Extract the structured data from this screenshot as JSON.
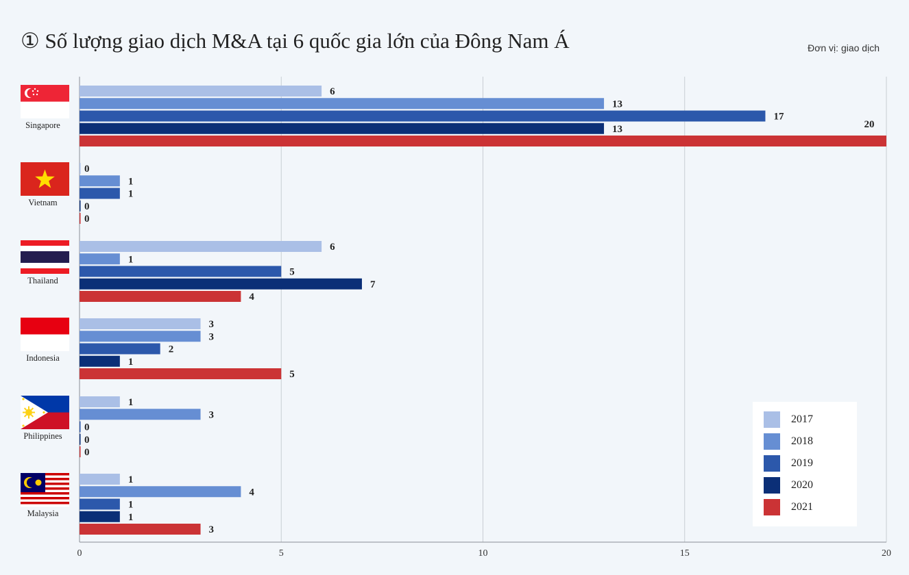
{
  "header": {
    "title": "① Số lượng giao dịch M&A tại 6 quốc gia lớn của Đông Nam Á",
    "unit": "Đơn vị: giao dịch"
  },
  "colors": {
    "2017": "#aabfe6",
    "2018": "#668ed3",
    "2019": "#2c58ab",
    "2020": "#0b2f77",
    "2021": "#cb3335",
    "grid": "#c8cdd3",
    "axis": "#8a8f96"
  },
  "chart_data": {
    "type": "bar",
    "orientation": "horizontal",
    "title": "① Số lượng giao dịch M&A tại 6 quốc gia lớn của Đông Nam Á",
    "xlim": [
      0,
      20
    ],
    "x_ticks": [
      0,
      5,
      10,
      15,
      20
    ],
    "grid": true,
    "legend_position": "bottom-right",
    "categories": [
      "Singapore",
      "Vietnam",
      "Thailand",
      "Indonesia",
      "Philippines",
      "Malaysia"
    ],
    "series": [
      {
        "name": "2017",
        "values": [
          6,
          0,
          6,
          3,
          1,
          1
        ]
      },
      {
        "name": "2018",
        "values": [
          13,
          1,
          1,
          3,
          3,
          4
        ]
      },
      {
        "name": "2019",
        "values": [
          17,
          1,
          5,
          2,
          0,
          1
        ]
      },
      {
        "name": "2020",
        "values": [
          13,
          0,
          7,
          1,
          0,
          1
        ]
      },
      {
        "name": "2021",
        "values": [
          20,
          0,
          4,
          5,
          0,
          3
        ]
      }
    ]
  },
  "flags": [
    {
      "country": "Singapore",
      "icon": "singapore-flag-icon"
    },
    {
      "country": "Vietnam",
      "icon": "vietnam-flag-icon"
    },
    {
      "country": "Thailand",
      "icon": "thailand-flag-icon"
    },
    {
      "country": "Indonesia",
      "icon": "indonesia-flag-icon"
    },
    {
      "country": "Philippines",
      "icon": "philippines-flag-icon"
    },
    {
      "country": "Malaysia",
      "icon": "malaysia-flag-icon"
    }
  ]
}
